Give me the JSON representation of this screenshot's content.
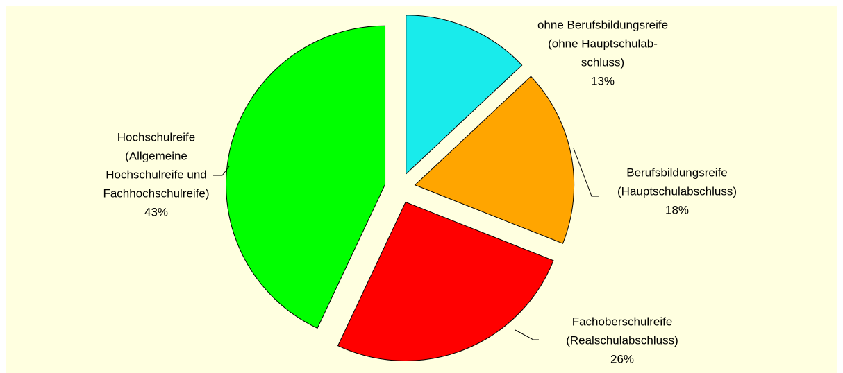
{
  "chart_data": {
    "type": "pie",
    "categories": [
      [
        "ohne Berufsbildungsreife",
        "(ohne Hauptschulab-",
        "schluss)"
      ],
      [
        "Berufsbildungsreife",
        "(Hauptschulabschluss)"
      ],
      [
        "Fachoberschulreife",
        "(Realschulabschluss)"
      ],
      [
        "Hochschulreife",
        "(Allgemeine",
        "Hochschulreife und",
        "Fachhochschulreife)"
      ]
    ],
    "values": [
      13,
      18,
      26,
      43
    ],
    "value_labels": [
      "13%",
      "18%",
      "26%",
      "43%"
    ],
    "colors": [
      "#19ebeb",
      "#ffa500",
      "#ff0000",
      "#00ff00"
    ],
    "exploded": true
  }
}
